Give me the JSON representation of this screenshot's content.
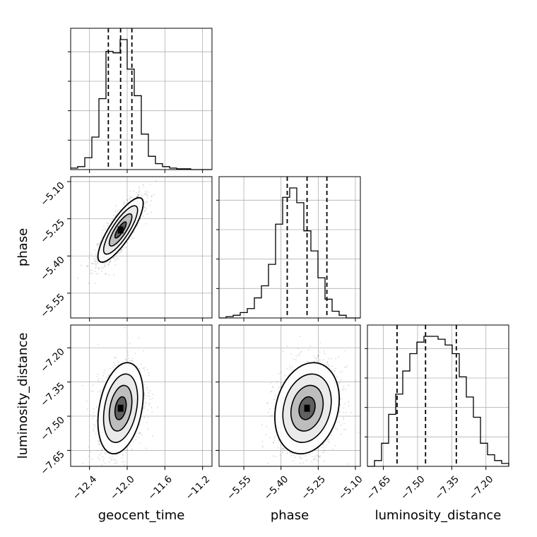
{
  "chart_data": {
    "type": "corner",
    "parameters": [
      "geocent_time",
      "phase",
      "luminosity_distance"
    ],
    "ranges": [
      [
        -12.6,
        -11.1
      ],
      [
        -5.65,
        -5.08
      ],
      [
        -7.72,
        -7.1
      ]
    ],
    "ticks": [
      {
        "values": [
          -12.4,
          -12.0,
          -11.6,
          -11.2
        ],
        "labels": [
          "−12.4",
          "−12.0",
          "−11.6",
          "−11.2"
        ]
      },
      {
        "values": [
          -5.55,
          -5.4,
          -5.25,
          -5.1
        ],
        "labels": [
          "−5.55",
          "−5.40",
          "−5.25",
          "−5.10"
        ]
      },
      {
        "values": [
          -7.65,
          -7.5,
          -7.35,
          -7.2
        ],
        "labels": [
          "−7.65",
          "−7.50",
          "−7.35",
          "−7.20"
        ]
      }
    ],
    "means": [
      -12.07,
      -5.295,
      -7.465
    ],
    "sigmas": [
      0.12,
      0.065,
      0.1
    ],
    "quantiles": [
      [
        -12.2,
        -12.07,
        -11.95
      ],
      [
        -5.375,
        -5.295,
        -5.215
      ],
      [
        -7.59,
        -7.465,
        -7.33
      ]
    ],
    "hist_1d": [
      {
        "edges_start": -12.6,
        "bin_width": 0.075,
        "counts": [
          1,
          2,
          8,
          22,
          48,
          80,
          79,
          88,
          68,
          50,
          24,
          9,
          4,
          2,
          1,
          0.5,
          0.5,
          0,
          0,
          0
        ]
      },
      {
        "edges_start": -5.65,
        "bin_width": 0.0285,
        "counts": [
          0,
          1,
          2,
          4,
          7,
          15,
          24,
          40,
          70,
          90,
          97,
          86,
          65,
          50,
          30,
          14,
          5,
          2,
          0,
          0
        ]
      },
      {
        "edges_start": -7.72,
        "bin_width": 0.031,
        "counts": [
          0,
          2,
          8,
          18,
          25,
          33,
          39,
          43,
          45,
          45,
          44,
          42,
          39,
          31,
          24,
          17,
          8,
          4,
          2,
          1
        ]
      }
    ],
    "correlations": {
      "phase_vs_geocent_time": 0.82,
      "luminosity_distance_vs_geocent_time": 0.3,
      "luminosity_distance_vs_phase": 0.2
    },
    "grid": true,
    "colors": {
      "line": "#000000",
      "grid": "#b0b0b0",
      "scatter": "#000000",
      "density": "#000000"
    }
  }
}
